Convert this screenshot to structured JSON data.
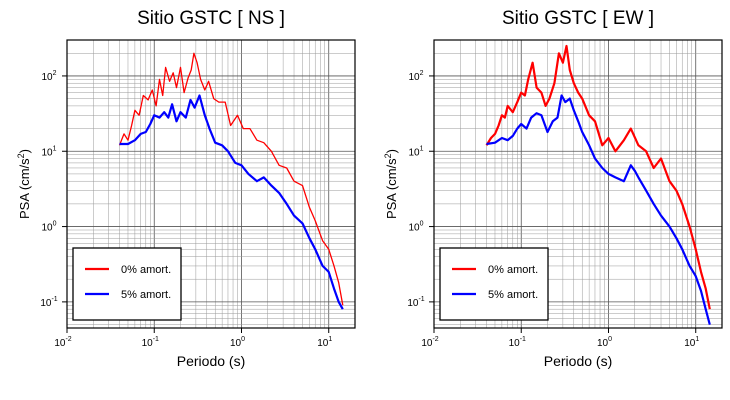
{
  "chart_data": [
    {
      "type": "line",
      "title": "Sitio GSTC [ NS ]",
      "xlabel": "Periodo (s)",
      "ylabel_main": "PSA (cm/s",
      "ylabel_sup": "2",
      "ylabel_tail": ")",
      "x_scale": "log",
      "y_scale": "log",
      "xlim": [
        0.01,
        20
      ],
      "ylim": [
        0.045,
        300
      ],
      "grid": true,
      "legend_position": "bottom-left",
      "xticks": [
        {
          "base": "10",
          "exp": "-2"
        },
        {
          "base": "10",
          "exp": "-1"
        },
        {
          "base": "10",
          "exp": "0"
        },
        {
          "base": "10",
          "exp": "1"
        }
      ],
      "yticks": [
        {
          "base": "10",
          "exp": "-1"
        },
        {
          "base": "10",
          "exp": "0"
        },
        {
          "base": "10",
          "exp": "1"
        },
        {
          "base": "10",
          "exp": "2"
        }
      ],
      "series": [
        {
          "name": "0% amort.",
          "color": "#ff0000",
          "width": 1.3,
          "x": [
            0.04,
            0.045,
            0.05,
            0.055,
            0.06,
            0.067,
            0.075,
            0.085,
            0.095,
            0.105,
            0.115,
            0.125,
            0.135,
            0.15,
            0.165,
            0.18,
            0.2,
            0.22,
            0.245,
            0.265,
            0.285,
            0.31,
            0.34,
            0.38,
            0.42,
            0.48,
            0.55,
            0.65,
            0.75,
            0.9,
            1.05,
            1.25,
            1.5,
            1.8,
            2.2,
            2.7,
            3.3,
            4.0,
            5.0,
            6.0,
            7.0,
            8.5,
            10.0,
            11.5,
            13.0,
            14.5
          ],
          "y": [
            12,
            17,
            14,
            22,
            35,
            30,
            55,
            48,
            65,
            40,
            90,
            55,
            130,
            85,
            110,
            70,
            130,
            60,
            95,
            120,
            200,
            150,
            90,
            65,
            85,
            50,
            45,
            45,
            22,
            30,
            20,
            20,
            14,
            13,
            10,
            6.5,
            6.0,
            4.0,
            3.5,
            1.8,
            1.2,
            0.65,
            0.5,
            0.3,
            0.18,
            0.09
          ]
        },
        {
          "name": "5% amort.",
          "color": "#0000ff",
          "width": 2.2,
          "x": [
            0.04,
            0.05,
            0.06,
            0.07,
            0.08,
            0.09,
            0.1,
            0.115,
            0.13,
            0.145,
            0.16,
            0.18,
            0.2,
            0.23,
            0.26,
            0.29,
            0.33,
            0.38,
            0.43,
            0.5,
            0.6,
            0.7,
            0.85,
            1.0,
            1.2,
            1.5,
            1.8,
            2.2,
            2.7,
            3.3,
            4.0,
            5.0,
            6.0,
            7.0,
            8.5,
            10.0,
            11.5,
            13.0,
            14.5
          ],
          "y": [
            12.5,
            12.5,
            14,
            17,
            18,
            23,
            30,
            28,
            33,
            28,
            42,
            25,
            33,
            28,
            48,
            38,
            55,
            30,
            20,
            13,
            12,
            10,
            7.0,
            6.5,
            5.0,
            4.0,
            4.5,
            3.5,
            2.8,
            2.0,
            1.4,
            1.1,
            0.7,
            0.5,
            0.3,
            0.25,
            0.15,
            0.1,
            0.08
          ]
        }
      ]
    },
    {
      "type": "line",
      "title": "Sitio GSTC [ EW ]",
      "xlabel": "Periodo (s)",
      "ylabel_main": "PSA (cm/s",
      "ylabel_sup": "2",
      "ylabel_tail": ")",
      "x_scale": "log",
      "y_scale": "log",
      "xlim": [
        0.01,
        20
      ],
      "ylim": [
        0.045,
        300
      ],
      "grid": true,
      "legend_position": "bottom-left",
      "xticks": [
        {
          "base": "10",
          "exp": "-2"
        },
        {
          "base": "10",
          "exp": "-1"
        },
        {
          "base": "10",
          "exp": "0"
        },
        {
          "base": "10",
          "exp": "1"
        }
      ],
      "yticks": [
        {
          "base": "10",
          "exp": "-1"
        },
        {
          "base": "10",
          "exp": "0"
        },
        {
          "base": "10",
          "exp": "1"
        },
        {
          "base": "10",
          "exp": "2"
        }
      ],
      "series": [
        {
          "name": "0% amort.",
          "color": "#ff0000",
          "width": 2.2,
          "x": [
            0.04,
            0.045,
            0.05,
            0.055,
            0.06,
            0.065,
            0.07,
            0.08,
            0.09,
            0.1,
            0.11,
            0.12,
            0.135,
            0.15,
            0.17,
            0.19,
            0.21,
            0.24,
            0.27,
            0.3,
            0.33,
            0.36,
            0.4,
            0.45,
            0.5,
            0.6,
            0.7,
            0.85,
            1.0,
            1.2,
            1.5,
            1.8,
            2.2,
            2.7,
            3.3,
            4.0,
            5.0,
            6.0,
            7.0,
            8.5,
            10.0,
            11.5,
            13.0,
            14.5
          ],
          "y": [
            12,
            15,
            17,
            22,
            30,
            28,
            40,
            33,
            45,
            60,
            55,
            90,
            150,
            70,
            60,
            40,
            50,
            80,
            200,
            150,
            250,
            120,
            80,
            60,
            50,
            30,
            25,
            12,
            15,
            10,
            14,
            20,
            12,
            10,
            6.0,
            8.0,
            4.0,
            3.0,
            2.0,
            1.0,
            0.5,
            0.25,
            0.15,
            0.08
          ]
        },
        {
          "name": "5% amort.",
          "color": "#0000ff",
          "width": 2.2,
          "x": [
            0.04,
            0.05,
            0.06,
            0.07,
            0.08,
            0.09,
            0.1,
            0.115,
            0.13,
            0.15,
            0.17,
            0.2,
            0.23,
            0.26,
            0.29,
            0.32,
            0.36,
            0.4,
            0.45,
            0.5,
            0.6,
            0.7,
            0.85,
            1.0,
            1.2,
            1.5,
            1.8,
            2.0,
            2.2,
            2.7,
            3.3,
            4.0,
            5.0,
            6.0,
            7.0,
            8.5,
            10.0,
            11.5,
            13.0,
            14.5
          ],
          "y": [
            12.5,
            13,
            15,
            14,
            16,
            20,
            23,
            20,
            28,
            32,
            30,
            18,
            25,
            28,
            55,
            45,
            50,
            35,
            25,
            18,
            12,
            8.0,
            6.0,
            5.0,
            4.5,
            4.0,
            6.5,
            5.5,
            4.5,
            3.0,
            2.0,
            1.4,
            1.0,
            0.7,
            0.5,
            0.3,
            0.22,
            0.14,
            0.08,
            0.05
          ]
        }
      ]
    }
  ]
}
